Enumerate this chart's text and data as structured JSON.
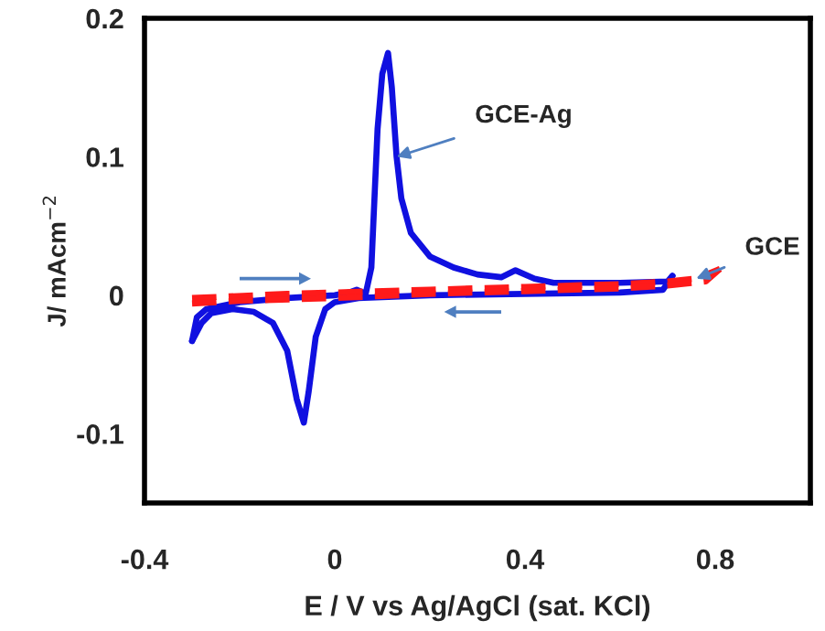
{
  "chart_data": {
    "type": "line",
    "xlabel": "E / V vs Ag/AgCl (sat. KCl)",
    "ylabel": "J/ mAcm$^{−2}$",
    "xlim": [
      -0.4,
      1.0
    ],
    "xticks": [
      -0.4,
      0,
      0.4,
      0.8
    ],
    "ylim": [
      -0.15,
      0.2
    ],
    "yticks": [
      -0.1,
      0,
      0.1,
      0.2
    ],
    "grid": false,
    "series": [
      {
        "name": null,
        "color": "#1010e0",
        "line_style": "solid",
        "x": [
          -0.3,
          -0.29,
          -0.27,
          -0.2,
          -0.1,
          0.0,
          0.03,
          0.046,
          0.065,
          0.077,
          0.09,
          0.1,
          0.112,
          0.12,
          0.13,
          0.14,
          0.16,
          0.2,
          0.25,
          0.3,
          0.35,
          0.38,
          0.42,
          0.46,
          0.6,
          0.7,
          0.71
        ],
        "values": [
          -0.033,
          -0.016,
          -0.01,
          -0.005,
          -0.002,
          0.0,
          0.002,
          0.004,
          0.001,
          0.02,
          0.12,
          0.16,
          0.175,
          0.15,
          0.1,
          0.07,
          0.045,
          0.028,
          0.02,
          0.015,
          0.013,
          0.018,
          0.012,
          0.009,
          0.009,
          0.01,
          0.014
        ]
      },
      {
        "name": null,
        "color": "#1010e0",
        "line_style": "solid",
        "x": [
          -0.3,
          -0.28,
          -0.26,
          -0.215,
          -0.17,
          -0.13,
          -0.1,
          -0.08,
          -0.065,
          -0.055,
          -0.04,
          -0.02,
          0.0,
          0.05,
          0.2,
          0.4,
          0.6,
          0.69,
          0.71
        ],
        "values": [
          -0.033,
          -0.02,
          -0.013,
          -0.01,
          -0.012,
          -0.02,
          -0.04,
          -0.075,
          -0.092,
          -0.07,
          -0.03,
          -0.01,
          -0.005,
          -0.002,
          0.0,
          0.001,
          0.002,
          0.004,
          0.014
        ]
      },
      {
        "name": null,
        "color": "#ff1a1a",
        "line_style": "dashed",
        "x": [
          -0.3,
          -0.1,
          0.0,
          0.2,
          0.4,
          0.6,
          0.7,
          0.76,
          0.81
        ],
        "values": [
          -0.002,
          0.001,
          0.002,
          0.004,
          0.006,
          0.008,
          0.01,
          0.012,
          0.019
        ]
      },
      {
        "name": null,
        "color": "#ff1a1a",
        "line_style": "dashed",
        "x": [
          -0.3,
          -0.2,
          0.0,
          0.2,
          0.4,
          0.6,
          0.7,
          0.78,
          0.81
        ],
        "values": [
          -0.006,
          -0.004,
          -0.002,
          0.001,
          0.003,
          0.005,
          0.007,
          0.01,
          0.019
        ]
      }
    ],
    "annotations": [
      {
        "text": "GCE-Ag",
        "x": 0.13,
        "y": 0.1
      },
      {
        "text": "GCE",
        "x": 0.76,
        "y": 0.012
      }
    ]
  }
}
